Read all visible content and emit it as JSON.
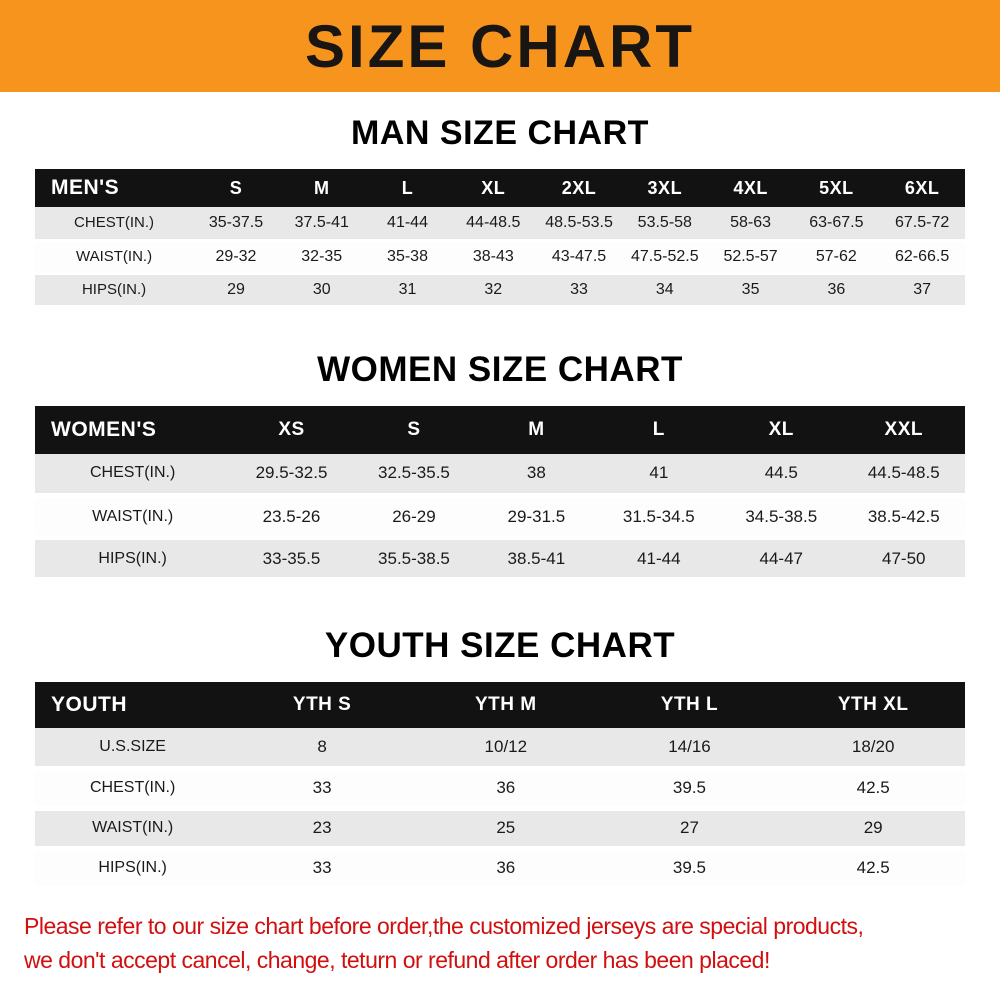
{
  "banner": {
    "title": "SIZE CHART"
  },
  "colors": {
    "banner_bg": "#F7941D",
    "header_bg": "#121212",
    "row_alt": "#e8e8e8",
    "footer_text": "#d10f0f"
  },
  "chart_data": [
    {
      "type": "table",
      "title": "MAN SIZE CHART",
      "columns": [
        "MEN'S",
        "S",
        "M",
        "L",
        "XL",
        "2XL",
        "3XL",
        "4XL",
        "5XL",
        "6XL"
      ],
      "rows": [
        [
          "CHEST(IN.)",
          "35-37.5",
          "37.5-41",
          "41-44",
          "44-48.5",
          "48.5-53.5",
          "53.5-58",
          "58-63",
          "63-67.5",
          "67.5-72"
        ],
        [
          "WAIST(IN.)",
          "29-32",
          "32-35",
          "35-38",
          "38-43",
          "43-47.5",
          "47.5-52.5",
          "52.5-57",
          "57-62",
          "62-66.5"
        ],
        [
          "HIPS(IN.)",
          "29",
          "30",
          "31",
          "32",
          "33",
          "34",
          "35",
          "36",
          "37"
        ]
      ]
    },
    {
      "type": "table",
      "title": "WOMEN SIZE CHART",
      "columns": [
        "WOMEN'S",
        "XS",
        "S",
        "M",
        "L",
        "XL",
        "XXL"
      ],
      "rows": [
        [
          "CHEST(IN.)",
          "29.5-32.5",
          "32.5-35.5",
          "38",
          "41",
          "44.5",
          "44.5-48.5"
        ],
        [
          "WAIST(IN.)",
          "23.5-26",
          "26-29",
          "29-31.5",
          "31.5-34.5",
          "34.5-38.5",
          "38.5-42.5"
        ],
        [
          "HIPS(IN.)",
          "33-35.5",
          "35.5-38.5",
          "38.5-41",
          "41-44",
          "44-47",
          "47-50"
        ]
      ]
    },
    {
      "type": "table",
      "title": "YOUTH SIZE CHART",
      "columns": [
        "YOUTH",
        "YTH S",
        "YTH M",
        "YTH L",
        "YTH XL"
      ],
      "rows": [
        [
          "U.S.SIZE",
          "8",
          "10/12",
          "14/16",
          "18/20"
        ],
        [
          "CHEST(IN.)",
          "33",
          "36",
          "39.5",
          "42.5"
        ],
        [
          "WAIST(IN.)",
          "23",
          "25",
          "27",
          "29"
        ],
        [
          "HIPS(IN.)",
          "33",
          "36",
          "39.5",
          "42.5"
        ]
      ]
    }
  ],
  "footer": {
    "line1": "Please refer to our size chart before order,the customized jerseys are special products,",
    "line2": "we don't accept cancel, change, teturn or refund after order has been placed!"
  }
}
